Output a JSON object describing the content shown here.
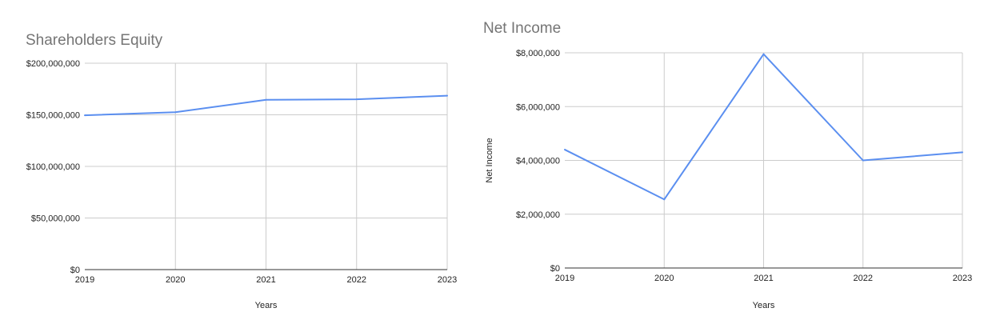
{
  "colors": {
    "series": "#5b8ff0",
    "grid": "#cccccc",
    "title": "#757575"
  },
  "chart_data": [
    {
      "type": "line",
      "title": "Shareholders Equity",
      "xlabel": "Years",
      "ylabel": "",
      "categories": [
        "2019",
        "2020",
        "2021",
        "2022",
        "2023"
      ],
      "series": [
        {
          "values": [
            149500000,
            152500000,
            164500000,
            165000000,
            168500000
          ]
        }
      ],
      "ylim": [
        0,
        200000000
      ],
      "yticks": [
        0,
        50000000,
        100000000,
        150000000,
        200000000
      ],
      "ytick_labels": [
        "$0",
        "$50,000,000",
        "$100,000,000",
        "$150,000,000",
        "$200,000,000"
      ],
      "grid": true,
      "legend": "none"
    },
    {
      "type": "line",
      "title": "Net Income",
      "xlabel": "Years",
      "ylabel": "Net Income",
      "categories": [
        "2019",
        "2020",
        "2021",
        "2022",
        "2023"
      ],
      "series": [
        {
          "values": [
            4400000,
            2550000,
            7950000,
            4000000,
            4300000
          ]
        }
      ],
      "ylim": [
        0,
        8000000
      ],
      "yticks": [
        0,
        2000000,
        4000000,
        6000000,
        8000000
      ],
      "ytick_labels": [
        "$0",
        "$2,000,000",
        "$4,000,000",
        "$6,000,000",
        "$8,000,000"
      ],
      "grid": true,
      "legend": "none"
    }
  ]
}
